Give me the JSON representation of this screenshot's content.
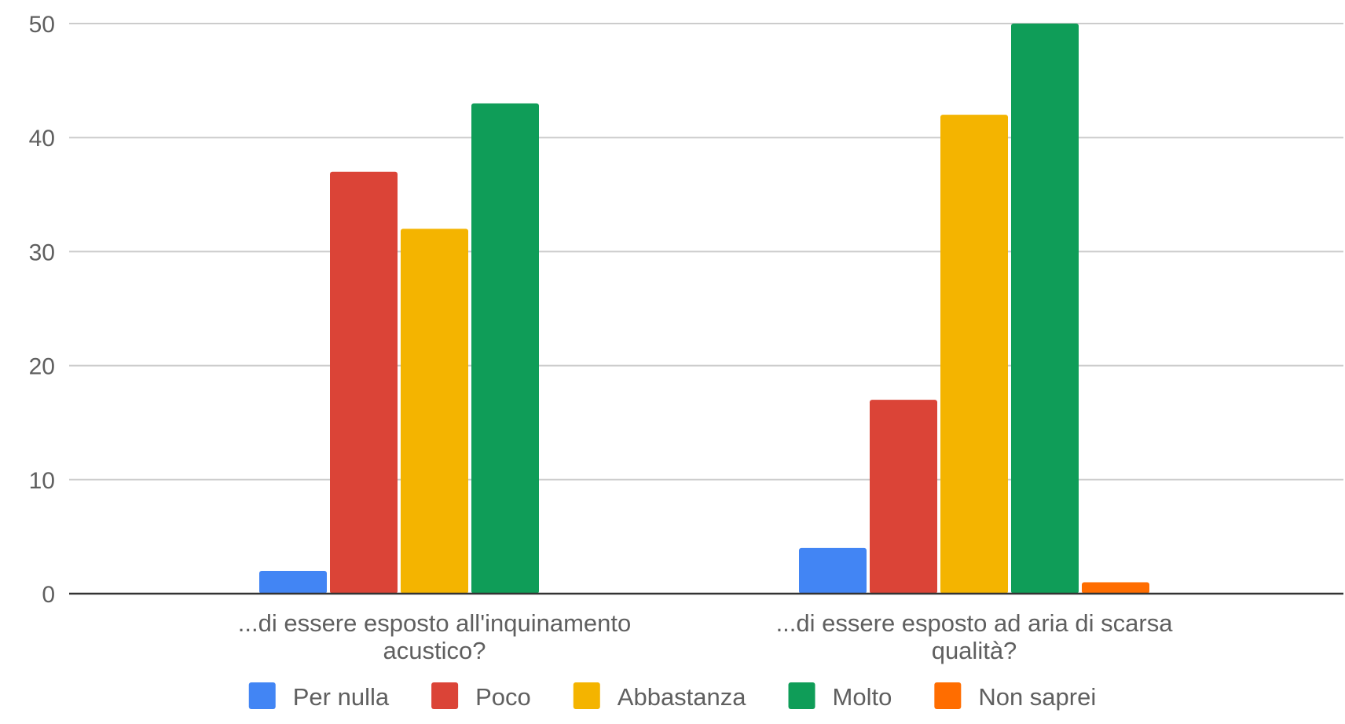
{
  "chart_data": {
    "type": "bar",
    "title": "",
    "xlabel": "",
    "ylabel": "",
    "ylim": [
      0,
      50
    ],
    "yticks": [
      0,
      10,
      20,
      30,
      40,
      50
    ],
    "grid": true,
    "legend_position": "bottom",
    "categories": [
      [
        "...di essere esposto all'inquinamento",
        "acustico?"
      ],
      [
        "...di essere esposto ad aria di scarsa",
        "qualità?"
      ]
    ],
    "series": [
      {
        "name": "Per nulla",
        "color": "#4285f4",
        "values": [
          2,
          4
        ]
      },
      {
        "name": "Poco",
        "color": "#db4437",
        "values": [
          37,
          17
        ]
      },
      {
        "name": "Abbastanza",
        "color": "#f4b400",
        "values": [
          32,
          42
        ]
      },
      {
        "name": "Molto",
        "color": "#0f9d58",
        "values": [
          43,
          50
        ]
      },
      {
        "name": "Non saprei",
        "color": "#ff6d00",
        "values": [
          0,
          1
        ]
      }
    ]
  }
}
